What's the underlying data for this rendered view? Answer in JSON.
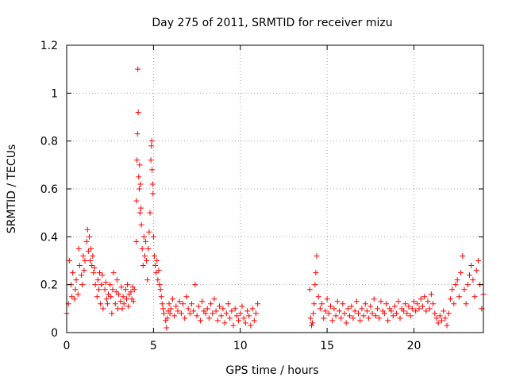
{
  "chart_data": {
    "type": "scatter",
    "title": "Day 275 of 2011, SRMTID for receiver mizu",
    "xlabel": "GPS time / hours",
    "ylabel": "SRMTID / TECUs",
    "xlim": [
      0,
      24
    ],
    "ylim": [
      0,
      1.2
    ],
    "xticks": [
      0,
      5,
      10,
      15,
      20
    ],
    "xtick_labels": [
      "0",
      "5",
      "10",
      "15",
      "20"
    ],
    "yticks": [
      0,
      0.2,
      0.4,
      0.6,
      0.8,
      1,
      1.2
    ],
    "ytick_labels": [
      "0",
      "0.2",
      "0.4",
      "0.6",
      "0.8",
      "1",
      "1.2"
    ],
    "grid": true,
    "marker": "+",
    "color": "#ff0000",
    "series": [
      {
        "name": "SRMTID",
        "x": [
          0.0,
          0.1,
          0.15,
          0.25,
          0.3,
          0.35,
          0.45,
          0.5,
          0.55,
          0.65,
          0.7,
          0.75,
          0.85,
          0.9,
          0.95,
          1.0,
          1.05,
          1.15,
          1.2,
          1.25,
          1.3,
          1.35,
          1.4,
          1.45,
          1.5,
          1.55,
          1.6,
          1.65,
          1.75,
          1.8,
          1.85,
          1.9,
          1.95,
          2.0,
          2.05,
          2.1,
          2.2,
          2.25,
          2.3,
          2.35,
          2.4,
          2.5,
          2.55,
          2.6,
          2.65,
          2.7,
          2.8,
          2.85,
          2.9,
          2.95,
          3.0,
          3.1,
          3.15,
          3.2,
          3.25,
          3.3,
          3.4,
          3.45,
          3.5,
          3.55,
          3.6,
          3.7,
          3.75,
          3.8,
          3.85,
          3.9,
          4.0,
          4.02,
          4.05,
          4.08,
          4.1,
          4.12,
          4.15,
          4.18,
          4.2,
          4.22,
          4.25,
          4.28,
          4.3,
          4.35,
          4.4,
          4.45,
          4.5,
          4.55,
          4.6,
          4.65,
          4.7,
          4.75,
          4.8,
          4.85,
          4.88,
          4.9,
          4.92,
          4.95,
          4.97,
          5.0,
          5.05,
          5.1,
          5.15,
          5.2,
          5.25,
          5.3,
          5.35,
          5.4,
          5.45,
          5.5,
          5.55,
          5.6,
          5.7,
          5.75,
          5.8,
          5.85,
          5.9,
          5.95,
          6.0,
          6.1,
          6.2,
          6.3,
          6.4,
          6.5,
          6.6,
          6.7,
          6.8,
          6.9,
          7.0,
          7.1,
          7.2,
          7.3,
          7.4,
          7.5,
          7.6,
          7.7,
          7.8,
          7.9,
          8.0,
          8.1,
          8.2,
          8.3,
          8.4,
          8.5,
          8.6,
          8.7,
          8.8,
          8.9,
          9.0,
          9.1,
          9.2,
          9.3,
          9.4,
          9.5,
          9.6,
          9.7,
          9.8,
          9.9,
          10.0,
          10.1,
          10.2,
          10.3,
          10.4,
          10.5,
          10.6,
          10.7,
          10.8,
          10.9,
          11.0,
          14.0,
          14.05,
          14.1,
          14.15,
          14.2,
          14.25,
          14.3,
          14.35,
          14.4,
          14.5,
          14.6,
          14.7,
          14.8,
          14.9,
          15.0,
          15.1,
          15.2,
          15.3,
          15.4,
          15.5,
          15.6,
          15.7,
          15.8,
          15.9,
          16.0,
          16.1,
          16.2,
          16.3,
          16.4,
          16.5,
          16.6,
          16.7,
          16.8,
          16.9,
          17.0,
          17.1,
          17.2,
          17.3,
          17.4,
          17.5,
          17.6,
          17.7,
          17.8,
          17.9,
          18.0,
          18.1,
          18.2,
          18.3,
          18.4,
          18.5,
          18.6,
          18.7,
          18.8,
          18.9,
          19.0,
          19.1,
          19.2,
          19.3,
          19.4,
          19.5,
          19.6,
          19.7,
          19.8,
          19.9,
          20.0,
          20.1,
          20.2,
          20.3,
          20.4,
          20.5,
          20.6,
          20.7,
          20.8,
          20.9,
          21.0,
          21.1,
          21.2,
          21.3,
          21.4,
          21.5,
          21.6,
          21.7,
          21.8,
          21.9,
          22.0,
          22.1,
          22.2,
          22.3,
          22.4,
          22.5,
          22.6,
          22.7,
          22.8,
          22.9,
          23.0,
          23.1,
          23.2,
          23.3,
          23.4,
          23.5,
          23.6,
          23.7,
          23.8,
          23.9,
          24.0
        ],
        "y": [
          0.08,
          0.12,
          0.3,
          0.2,
          0.15,
          0.25,
          0.14,
          0.18,
          0.22,
          0.16,
          0.35,
          0.28,
          0.24,
          0.2,
          0.32,
          0.26,
          0.3,
          0.38,
          0.43,
          0.34,
          0.4,
          0.3,
          0.35,
          0.28,
          0.32,
          0.25,
          0.27,
          0.2,
          0.15,
          0.22,
          0.18,
          0.25,
          0.12,
          0.2,
          0.24,
          0.1,
          0.18,
          0.21,
          0.14,
          0.12,
          0.16,
          0.2,
          0.15,
          0.08,
          0.18,
          0.25,
          0.12,
          0.17,
          0.22,
          0.1,
          0.16,
          0.13,
          0.19,
          0.1,
          0.15,
          0.12,
          0.18,
          0.14,
          0.2,
          0.11,
          0.16,
          0.17,
          0.14,
          0.19,
          0.13,
          0.18,
          0.38,
          0.55,
          0.72,
          0.83,
          1.1,
          0.92,
          0.65,
          0.6,
          0.7,
          0.5,
          0.62,
          0.52,
          0.45,
          0.35,
          0.28,
          0.4,
          0.32,
          0.38,
          0.3,
          0.22,
          0.35,
          0.42,
          0.5,
          0.72,
          0.78,
          0.8,
          0.68,
          0.62,
          0.58,
          0.4,
          0.32,
          0.28,
          0.25,
          0.3,
          0.22,
          0.26,
          0.2,
          0.18,
          0.15,
          0.12,
          0.1,
          0.08,
          0.05,
          0.02,
          0.06,
          0.09,
          0.12,
          0.08,
          0.1,
          0.14,
          0.07,
          0.11,
          0.09,
          0.13,
          0.08,
          0.12,
          0.06,
          0.15,
          0.1,
          0.08,
          0.12,
          0.09,
          0.2,
          0.07,
          0.11,
          0.05,
          0.13,
          0.09,
          0.08,
          0.1,
          0.06,
          0.12,
          0.08,
          0.14,
          0.09,
          0.05,
          0.11,
          0.07,
          0.1,
          0.04,
          0.08,
          0.12,
          0.06,
          0.09,
          0.03,
          0.1,
          0.07,
          0.05,
          0.08,
          0.11,
          0.06,
          0.04,
          0.09,
          0.07,
          0.03,
          0.1,
          0.05,
          0.08,
          0.12,
          0.18,
          0.06,
          0.03,
          0.04,
          0.08,
          0.12,
          0.2,
          0.25,
          0.32,
          0.15,
          0.1,
          0.12,
          0.06,
          0.09,
          0.14,
          0.08,
          0.11,
          0.05,
          0.1,
          0.07,
          0.13,
          0.09,
          0.06,
          0.12,
          0.08,
          0.04,
          0.1,
          0.07,
          0.11,
          0.06,
          0.09,
          0.13,
          0.08,
          0.05,
          0.1,
          0.07,
          0.12,
          0.09,
          0.06,
          0.11,
          0.08,
          0.14,
          0.07,
          0.1,
          0.06,
          0.13,
          0.09,
          0.08,
          0.12,
          0.05,
          0.1,
          0.09,
          0.07,
          0.11,
          0.08,
          0.13,
          0.06,
          0.1,
          0.09,
          0.12,
          0.08,
          0.11,
          0.07,
          0.1,
          0.13,
          0.09,
          0.12,
          0.1,
          0.14,
          0.11,
          0.15,
          0.09,
          0.13,
          0.1,
          0.16,
          0.12,
          0.08,
          0.06,
          0.04,
          0.07,
          0.05,
          0.09,
          0.06,
          0.03,
          0.08,
          0.14,
          0.18,
          0.12,
          0.2,
          0.22,
          0.15,
          0.25,
          0.32,
          0.18,
          0.12,
          0.2,
          0.24,
          0.28,
          0.22,
          0.15,
          0.26,
          0.3,
          0.2,
          0.1,
          0.16
        ]
      }
    ]
  }
}
